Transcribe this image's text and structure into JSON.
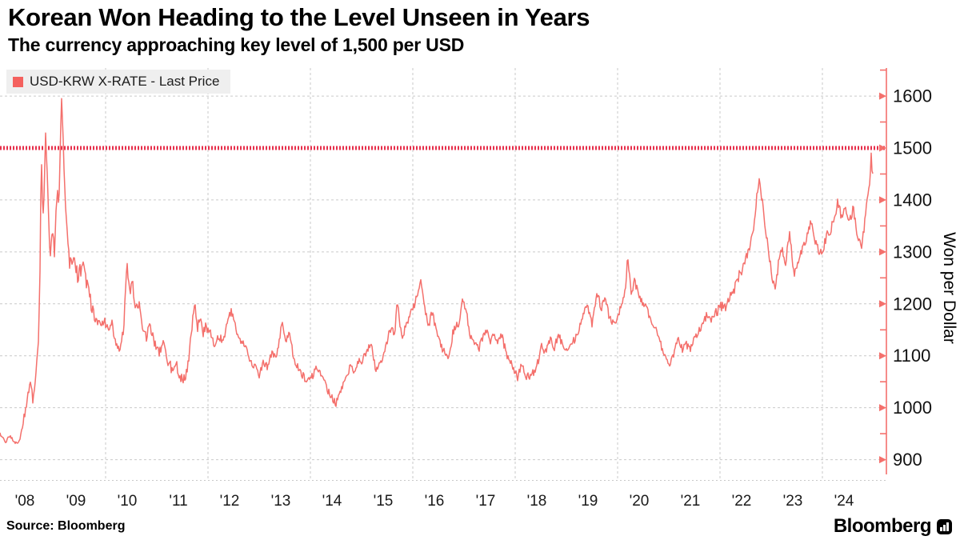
{
  "header": {
    "title": "Korean Won Heading to the Level Unseen in Years",
    "subtitle": "The currency approaching key level of 1,500 per USD"
  },
  "legend": {
    "label": "USD-KRW X-RATE - Last Price",
    "swatch_color": "#f4615e"
  },
  "footer": {
    "source": "Source: Bloomberg",
    "brand": "Bloomberg"
  },
  "chart_data": {
    "type": "line",
    "title": "Korean Won Heading to the Level Unseen in Years",
    "subtitle": "The currency approaching key level of 1,500 per USD",
    "xlabel": "",
    "ylabel": "Won per Dollar",
    "legend_position": "top-left",
    "grid": true,
    "y_ticks": [
      900,
      1000,
      1100,
      1200,
      1300,
      1400,
      1500,
      1600
    ],
    "minor_y_ticks": [
      950,
      1050,
      1150,
      1250,
      1350,
      1450,
      1550,
      1650
    ],
    "x_tick_labels": [
      "'08",
      "'09",
      "'10",
      "'11",
      "'12",
      "'13",
      "'14",
      "'15",
      "'16",
      "'17",
      "'18",
      "'19",
      "'20",
      "'21",
      "'22",
      "'23",
      "'24"
    ],
    "x_tick_years": [
      2008,
      2009,
      2010,
      2011,
      2012,
      2013,
      2014,
      2015,
      2016,
      2017,
      2018,
      2019,
      2020,
      2021,
      2022,
      2023,
      2024
    ],
    "vertical_grid_years": [
      2010,
      2012,
      2014,
      2016,
      2018,
      2020,
      2022,
      2024
    ],
    "x_range": [
      2007.94,
      2025.0
    ],
    "ylim": [
      861,
      1654
    ],
    "threshold": {
      "value": 1500,
      "style": "dotted"
    },
    "colors": {
      "series": "#f4706c",
      "threshold": "#e7304c",
      "grid": "#c9c9c9",
      "axis": "#f4706c",
      "tick_text": "#111111",
      "x_label_text": "#1a1a1a"
    },
    "series": [
      {
        "name": "USD-KRW X-RATE - Last Price",
        "keypoints": [
          [
            2007.94,
            948
          ],
          [
            2008.0,
            940
          ],
          [
            2008.06,
            934
          ],
          [
            2008.12,
            946
          ],
          [
            2008.2,
            936
          ],
          [
            2008.28,
            930
          ],
          [
            2008.33,
            938
          ],
          [
            2008.45,
            1005
          ],
          [
            2008.53,
            1050
          ],
          [
            2008.58,
            1016
          ],
          [
            2008.625,
            1060
          ],
          [
            2008.69,
            1145
          ],
          [
            2008.72,
            1260
          ],
          [
            2008.742,
            1490
          ],
          [
            2008.78,
            1365
          ],
          [
            2008.83,
            1525
          ],
          [
            2008.91,
            1285
          ],
          [
            2008.95,
            1330
          ],
          [
            2009.0,
            1305
          ],
          [
            2009.05,
            1420
          ],
          [
            2009.09,
            1390
          ],
          [
            2009.14,
            1597
          ],
          [
            2009.19,
            1450
          ],
          [
            2009.25,
            1345
          ],
          [
            2009.3,
            1270
          ],
          [
            2009.37,
            1300
          ],
          [
            2009.45,
            1255
          ],
          [
            2009.55,
            1275
          ],
          [
            2009.63,
            1235
          ],
          [
            2009.72,
            1200
          ],
          [
            2009.8,
            1168
          ],
          [
            2009.88,
            1158
          ],
          [
            2009.96,
            1170
          ],
          [
            2010.05,
            1150
          ],
          [
            2010.12,
            1162
          ],
          [
            2010.2,
            1128
          ],
          [
            2010.28,
            1104
          ],
          [
            2010.35,
            1150
          ],
          [
            2010.42,
            1276
          ],
          [
            2010.48,
            1215
          ],
          [
            2010.52,
            1245
          ],
          [
            2010.58,
            1185
          ],
          [
            2010.65,
            1200
          ],
          [
            2010.72,
            1160
          ],
          [
            2010.8,
            1130
          ],
          [
            2010.85,
            1168
          ],
          [
            2010.92,
            1135
          ],
          [
            2010.98,
            1120
          ],
          [
            2011.05,
            1108
          ],
          [
            2011.12,
            1128
          ],
          [
            2011.2,
            1095
          ],
          [
            2011.3,
            1072
          ],
          [
            2011.38,
            1082
          ],
          [
            2011.45,
            1062
          ],
          [
            2011.52,
            1052
          ],
          [
            2011.6,
            1072
          ],
          [
            2011.68,
            1150
          ],
          [
            2011.74,
            1208
          ],
          [
            2011.8,
            1152
          ],
          [
            2011.84,
            1180
          ],
          [
            2011.9,
            1144
          ],
          [
            2011.96,
            1158
          ],
          [
            2012.04,
            1148
          ],
          [
            2012.12,
            1122
          ],
          [
            2012.2,
            1138
          ],
          [
            2012.3,
            1128
          ],
          [
            2012.4,
            1175
          ],
          [
            2012.46,
            1186
          ],
          [
            2012.55,
            1150
          ],
          [
            2012.62,
            1132
          ],
          [
            2012.72,
            1118
          ],
          [
            2012.82,
            1092
          ],
          [
            2012.92,
            1078
          ],
          [
            2013.0,
            1062
          ],
          [
            2013.08,
            1088
          ],
          [
            2013.16,
            1078
          ],
          [
            2013.25,
            1108
          ],
          [
            2013.33,
            1098
          ],
          [
            2013.45,
            1163
          ],
          [
            2013.52,
            1125
          ],
          [
            2013.58,
            1148
          ],
          [
            2013.68,
            1092
          ],
          [
            2013.78,
            1072
          ],
          [
            2013.88,
            1058
          ],
          [
            2013.96,
            1052
          ],
          [
            2014.05,
            1062
          ],
          [
            2014.12,
            1078
          ],
          [
            2014.2,
            1068
          ],
          [
            2014.3,
            1042
          ],
          [
            2014.4,
            1022
          ],
          [
            2014.5,
            1009
          ],
          [
            2014.58,
            1032
          ],
          [
            2014.68,
            1052
          ],
          [
            2014.78,
            1082
          ],
          [
            2014.85,
            1068
          ],
          [
            2014.93,
            1092
          ],
          [
            2015.0,
            1088
          ],
          [
            2015.1,
            1108
          ],
          [
            2015.18,
            1128
          ],
          [
            2015.28,
            1068
          ],
          [
            2015.38,
            1088
          ],
          [
            2015.48,
            1122
          ],
          [
            2015.58,
            1158
          ],
          [
            2015.64,
            1140
          ],
          [
            2015.7,
            1205
          ],
          [
            2015.78,
            1138
          ],
          [
            2015.85,
            1152
          ],
          [
            2015.93,
            1172
          ],
          [
            2016.0,
            1192
          ],
          [
            2016.08,
            1212
          ],
          [
            2016.16,
            1244
          ],
          [
            2016.24,
            1188
          ],
          [
            2016.3,
            1158
          ],
          [
            2016.38,
            1182
          ],
          [
            2016.46,
            1148
          ],
          [
            2016.55,
            1118
          ],
          [
            2016.62,
            1105
          ],
          [
            2016.7,
            1092
          ],
          [
            2016.78,
            1142
          ],
          [
            2016.85,
            1165
          ],
          [
            2016.9,
            1152
          ],
          [
            2016.97,
            1210
          ],
          [
            2017.05,
            1182
          ],
          [
            2017.12,
            1142
          ],
          [
            2017.2,
            1122
          ],
          [
            2017.28,
            1112
          ],
          [
            2017.36,
            1132
          ],
          [
            2017.44,
            1152
          ],
          [
            2017.5,
            1128
          ],
          [
            2017.58,
            1142
          ],
          [
            2017.66,
            1128
          ],
          [
            2017.74,
            1138
          ],
          [
            2017.82,
            1108
          ],
          [
            2017.9,
            1088
          ],
          [
            2017.97,
            1072
          ],
          [
            2018.05,
            1058
          ],
          [
            2018.12,
            1082
          ],
          [
            2018.2,
            1062
          ],
          [
            2018.3,
            1058
          ],
          [
            2018.38,
            1072
          ],
          [
            2018.45,
            1088
          ],
          [
            2018.52,
            1118
          ],
          [
            2018.6,
            1108
          ],
          [
            2018.68,
            1132
          ],
          [
            2018.76,
            1112
          ],
          [
            2018.84,
            1142
          ],
          [
            2018.92,
            1122
          ],
          [
            2019.0,
            1112
          ],
          [
            2019.08,
            1128
          ],
          [
            2019.16,
            1132
          ],
          [
            2019.25,
            1152
          ],
          [
            2019.33,
            1182
          ],
          [
            2019.42,
            1192
          ],
          [
            2019.5,
            1162
          ],
          [
            2019.6,
            1222
          ],
          [
            2019.68,
            1192
          ],
          [
            2019.76,
            1208
          ],
          [
            2019.84,
            1172
          ],
          [
            2019.92,
            1160
          ],
          [
            2020.0,
            1172
          ],
          [
            2020.08,
            1198
          ],
          [
            2020.15,
            1228
          ],
          [
            2020.2,
            1296
          ],
          [
            2020.26,
            1222
          ],
          [
            2020.33,
            1242
          ],
          [
            2020.4,
            1222
          ],
          [
            2020.48,
            1202
          ],
          [
            2020.56,
            1192
          ],
          [
            2020.64,
            1172
          ],
          [
            2020.72,
            1158
          ],
          [
            2020.8,
            1132
          ],
          [
            2020.88,
            1112
          ],
          [
            2020.96,
            1088
          ],
          [
            2021.02,
            1082
          ],
          [
            2021.1,
            1102
          ],
          [
            2021.18,
            1138
          ],
          [
            2021.26,
            1112
          ],
          [
            2021.34,
            1122
          ],
          [
            2021.42,
            1112
          ],
          [
            2021.5,
            1132
          ],
          [
            2021.58,
            1148
          ],
          [
            2021.66,
            1158
          ],
          [
            2021.74,
            1178
          ],
          [
            2021.82,
            1168
          ],
          [
            2021.9,
            1182
          ],
          [
            2021.97,
            1188
          ],
          [
            2022.05,
            1198
          ],
          [
            2022.12,
            1192
          ],
          [
            2022.2,
            1212
          ],
          [
            2022.28,
            1228
          ],
          [
            2022.36,
            1252
          ],
          [
            2022.44,
            1268
          ],
          [
            2022.52,
            1292
          ],
          [
            2022.6,
            1318
          ],
          [
            2022.66,
            1342
          ],
          [
            2022.72,
            1408
          ],
          [
            2022.76,
            1442
          ],
          [
            2022.82,
            1402
          ],
          [
            2022.88,
            1352
          ],
          [
            2022.95,
            1302
          ],
          [
            2023.02,
            1252
          ],
          [
            2023.08,
            1222
          ],
          [
            2023.16,
            1292
          ],
          [
            2023.22,
            1308
          ],
          [
            2023.28,
            1278
          ],
          [
            2023.36,
            1340
          ],
          [
            2023.44,
            1258
          ],
          [
            2023.52,
            1282
          ],
          [
            2023.6,
            1302
          ],
          [
            2023.68,
            1322
          ],
          [
            2023.78,
            1356
          ],
          [
            2023.86,
            1322
          ],
          [
            2023.94,
            1302
          ],
          [
            2024.0,
            1297
          ],
          [
            2024.08,
            1332
          ],
          [
            2024.16,
            1342
          ],
          [
            2024.24,
            1368
          ],
          [
            2024.3,
            1398
          ],
          [
            2024.38,
            1365
          ],
          [
            2024.44,
            1385
          ],
          [
            2024.52,
            1352
          ],
          [
            2024.6,
            1385
          ],
          [
            2024.68,
            1332
          ],
          [
            2024.76,
            1305
          ],
          [
            2024.82,
            1352
          ],
          [
            2024.88,
            1402
          ],
          [
            2024.93,
            1440
          ],
          [
            2024.955,
            1486
          ],
          [
            2024.97,
            1448
          ],
          [
            2024.99,
            1462
          ]
        ]
      }
    ],
    "noise_profile": [
      [
        1900,
        7
      ],
      [
        2008.55,
        18
      ],
      [
        2008.98,
        15
      ],
      [
        2009.75,
        10
      ],
      [
        2012.0,
        7
      ],
      [
        2015.5,
        8
      ],
      [
        2020.35,
        7
      ],
      [
        2021.9,
        10
      ],
      [
        2023.1,
        9
      ]
    ]
  }
}
